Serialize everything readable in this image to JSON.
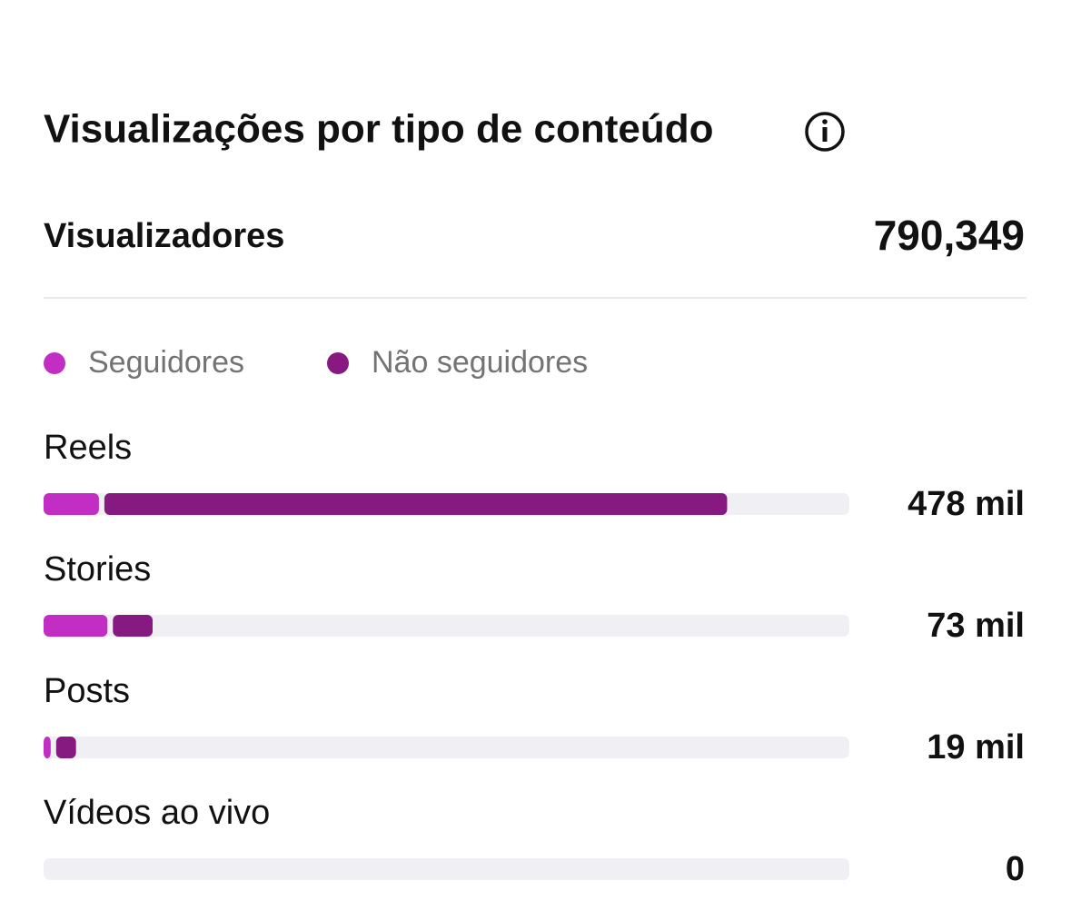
{
  "chart_data": {
    "type": "stacked-hbar",
    "title": "Visualizações por tipo de conteúdo",
    "summary_label": "Visualizadores",
    "summary_value": "790,349",
    "categories": [
      "Reels",
      "Stories",
      "Posts",
      "Vídeos ao vivo"
    ],
    "series": [
      {
        "name": "Seguidores",
        "color": "#c22ec3",
        "values": [
          39,
          45,
          5,
          0
        ]
      },
      {
        "name": "Não seguidores",
        "color": "#871a80",
        "values": [
          439,
          28,
          14,
          0
        ]
      }
    ],
    "totals": [
      478,
      73,
      19,
      0
    ],
    "total_labels": [
      "478 mil",
      "73 mil",
      "19 mil",
      "0"
    ],
    "xlim": [
      0,
      568
    ]
  }
}
